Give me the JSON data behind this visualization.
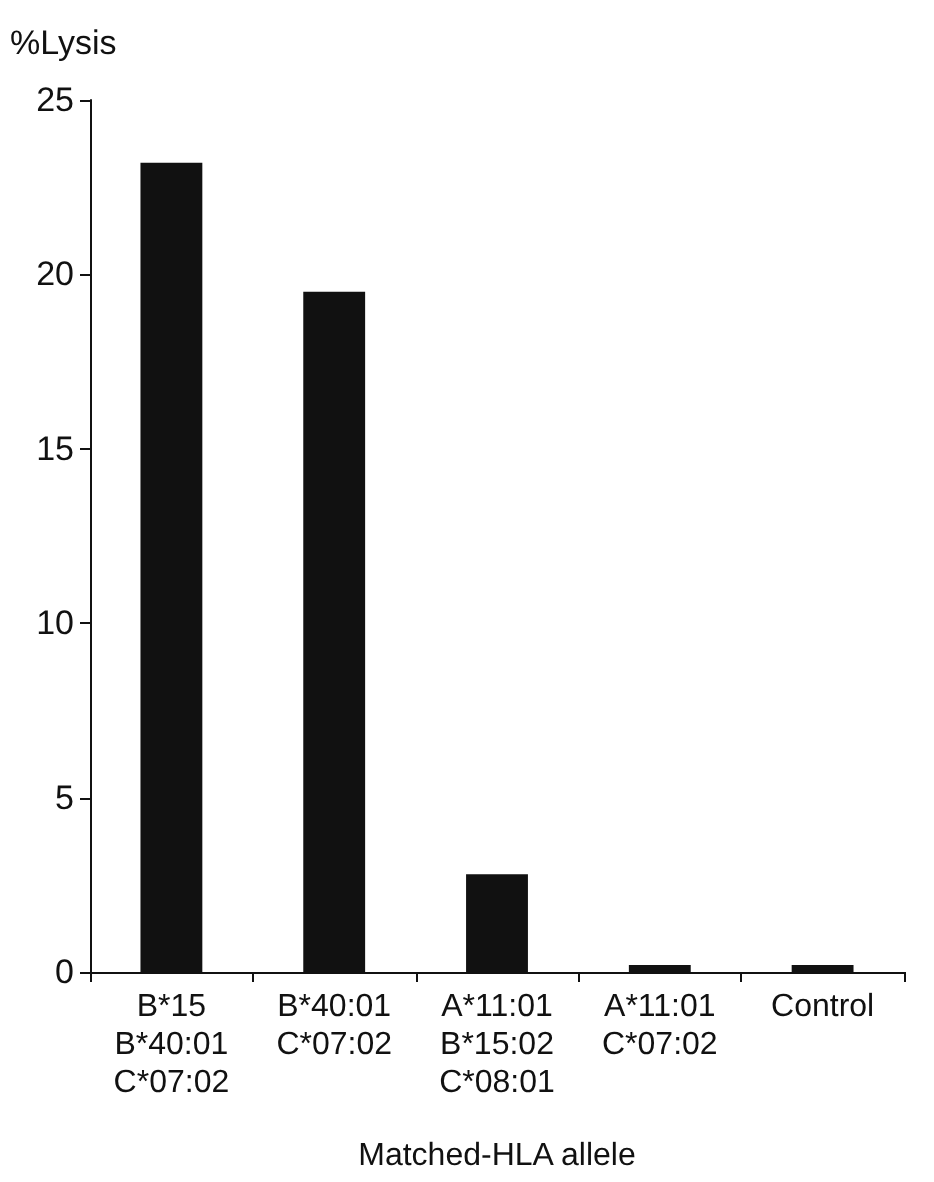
{
  "chart_data": {
    "type": "bar",
    "ylabel": "%Lysis",
    "xlabel": "Matched-HLA allele",
    "categories": [
      "B*15\nB*40:01\nC*07:02",
      "B*40:01\nC*07:02",
      "A*11:01\nB*15:02\nC*08:01",
      "A*11:01\nC*07:02",
      "Control"
    ],
    "values": [
      23.2,
      19.5,
      2.8,
      0.2,
      0.2
    ],
    "color": "#111111",
    "ylim": [
      0,
      25
    ],
    "yticks": [
      0,
      5,
      10,
      15,
      20,
      25
    ],
    "grid": false
  }
}
